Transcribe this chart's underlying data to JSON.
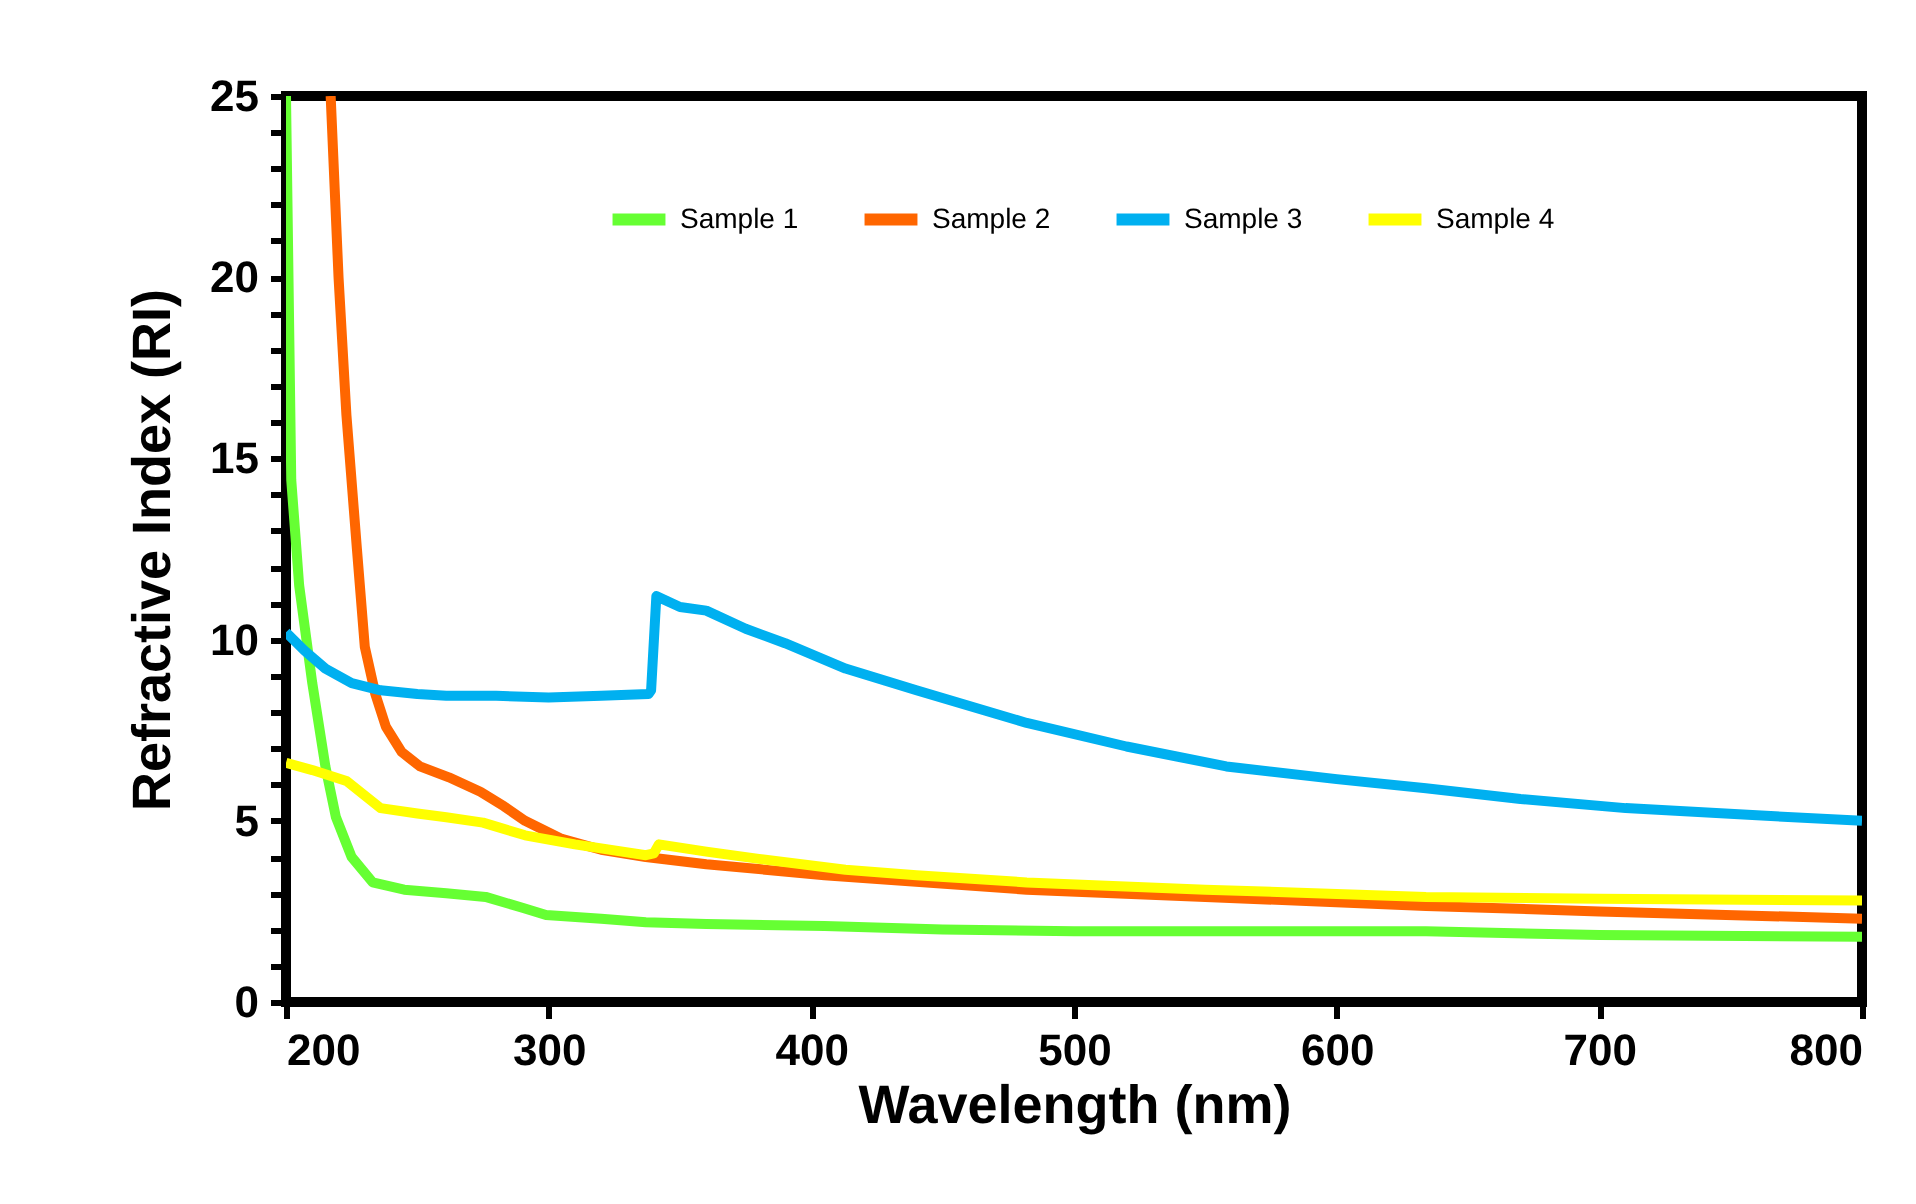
{
  "chart_data": {
    "type": "line",
    "xlabel": "Wavelength (nm)",
    "ylabel": "Refractive Index (RI)",
    "xlim": [
      200,
      800
    ],
    "ylim": [
      0,
      25
    ],
    "xticks": [
      200,
      300,
      400,
      500,
      600,
      700,
      800
    ],
    "yticks": [
      0,
      {
        "value": 1,
        "label": null
      },
      {
        "value": 2,
        "label": null
      },
      {
        "value": 3,
        "label": null
      },
      {
        "value": 4,
        "label": null
      },
      5,
      {
        "value": 6,
        "label": null
      },
      {
        "value": 7,
        "label": null
      },
      {
        "value": 8,
        "label": null
      },
      {
        "value": 9,
        "label": null
      },
      10,
      {
        "value": 11,
        "label": null
      },
      {
        "value": 12,
        "label": null
      },
      {
        "value": 13,
        "label": null
      },
      {
        "value": 14,
        "label": null
      },
      15,
      {
        "value": 16,
        "label": null
      },
      {
        "value": 17,
        "label": null
      },
      {
        "value": 18,
        "label": null
      },
      {
        "value": 19,
        "label": null
      },
      20,
      {
        "value": 21,
        "label": null
      },
      {
        "value": 22,
        "label": null
      },
      {
        "value": 23,
        "label": null
      },
      {
        "value": 24,
        "label": null
      },
      25
    ],
    "grid": false,
    "legend": "top",
    "line_style": "solid",
    "marker": "none",
    "series": [
      {
        "name": "Sample 1",
        "color": "#66ff33",
        "x": [
          200,
          202,
          205,
          210,
          215,
          219,
          225,
          233,
          245,
          261,
          276,
          290,
          299,
          320,
          337,
          360,
          405,
          450,
          500,
          550,
          634,
          700,
          800
        ],
        "values": [
          25,
          14.4,
          11.5,
          8.8,
          6.5,
          5.1,
          4,
          3.3,
          3.1,
          3,
          2.9,
          2.6,
          2.4,
          2.3,
          2.2,
          2.15,
          2.1,
          2.0,
          1.95,
          1.95,
          1.95,
          1.85,
          1.8
        ]
      },
      {
        "name": "Sample 2",
        "color": "#ff6600",
        "x": [
          217,
          220,
          223,
          227,
          230,
          234,
          238,
          244,
          251,
          262,
          274,
          283,
          291,
          305,
          320,
          337,
          360,
          405,
          482,
          550,
          634,
          700,
          800
        ],
        "values": [
          25,
          20,
          16.2,
          12.5,
          9.8,
          8.5,
          7.6,
          6.9,
          6.5,
          6.2,
          5.8,
          5.4,
          5.0,
          4.5,
          4.2,
          4.0,
          3.8,
          3.5,
          3.1,
          2.9,
          2.65,
          2.5,
          2.3
        ]
      },
      {
        "name": "Sample 3",
        "color": "#00b0f0",
        "x": [
          200,
          207,
          215,
          225,
          236,
          250,
          261,
          280,
          300,
          320,
          338,
          339,
          341,
          350,
          360,
          375,
          390,
          413,
          440,
          482,
          520,
          558,
          600,
          634,
          670,
          710,
          760,
          800
        ],
        "values": [
          10.2,
          9.7,
          9.2,
          8.8,
          8.6,
          8.5,
          8.45,
          8.45,
          8.4,
          8.45,
          8.5,
          8.6,
          11.2,
          10.9,
          10.8,
          10.3,
          9.9,
          9.2,
          8.6,
          7.7,
          7.05,
          6.5,
          6.15,
          5.9,
          5.6,
          5.35,
          5.15,
          5.0
        ]
      },
      {
        "name": "Sample 4",
        "color": "#ffff00",
        "x": [
          200,
          210,
          223,
          236,
          250,
          261,
          275,
          291,
          310,
          337,
          340,
          342,
          360,
          380,
          413,
          440,
          482,
          550,
          634,
          700,
          800
        ],
        "values": [
          6.6,
          6.4,
          6.1,
          5.35,
          5.2,
          5.1,
          4.95,
          4.6,
          4.35,
          4.05,
          4.1,
          4.35,
          4.15,
          3.95,
          3.65,
          3.5,
          3.3,
          3.1,
          2.9,
          2.85,
          2.8
        ]
      }
    ]
  }
}
